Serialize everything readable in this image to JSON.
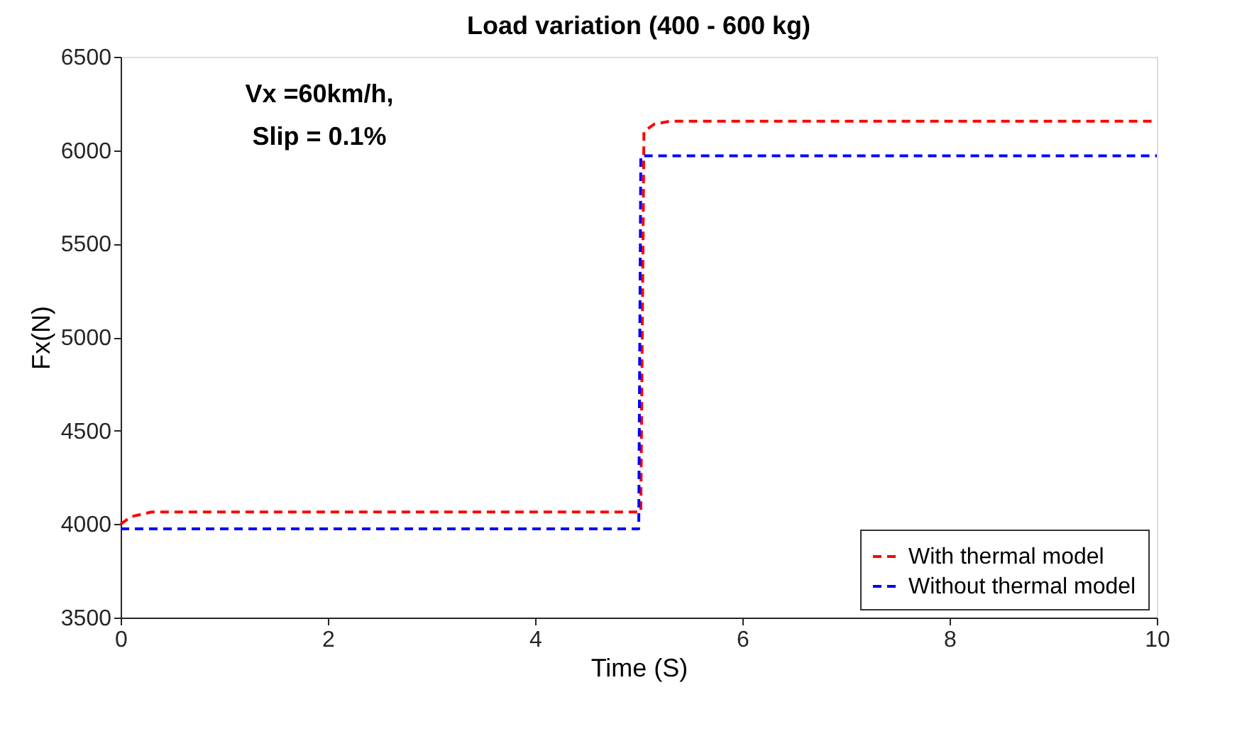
{
  "chart_data": {
    "type": "line",
    "title": "Load variation (400 - 600 kg)",
    "xlabel": "Time (S)",
    "ylabel": "Fx(N)",
    "annotations": [
      "Vx =60km/h,",
      "Slip = 0.1%"
    ],
    "series": [
      {
        "name": "With thermal model",
        "color": "#ff0000",
        "x": [
          0,
          0.1,
          0.3,
          5.0,
          5.02,
          5.05,
          5.15,
          5.3,
          10
        ],
        "values": [
          4000,
          4040,
          4065,
          4065,
          4065,
          6100,
          6140,
          6155,
          6155
        ]
      },
      {
        "name": "Without thermal model",
        "color": "#0000ff",
        "x": [
          0,
          5.0,
          5.02,
          10
        ],
        "values": [
          3975,
          3975,
          5970,
          5970
        ]
      }
    ],
    "xlim": [
      0,
      10
    ],
    "xticks": [
      0,
      2,
      4,
      6,
      8,
      10
    ],
    "ylim": [
      3500,
      6500
    ],
    "yticks": [
      3500,
      4000,
      4500,
      5000,
      5500,
      6000,
      6500
    ],
    "grid": false,
    "legend": "bottom right",
    "line_style": "dashed",
    "marker": "none"
  }
}
